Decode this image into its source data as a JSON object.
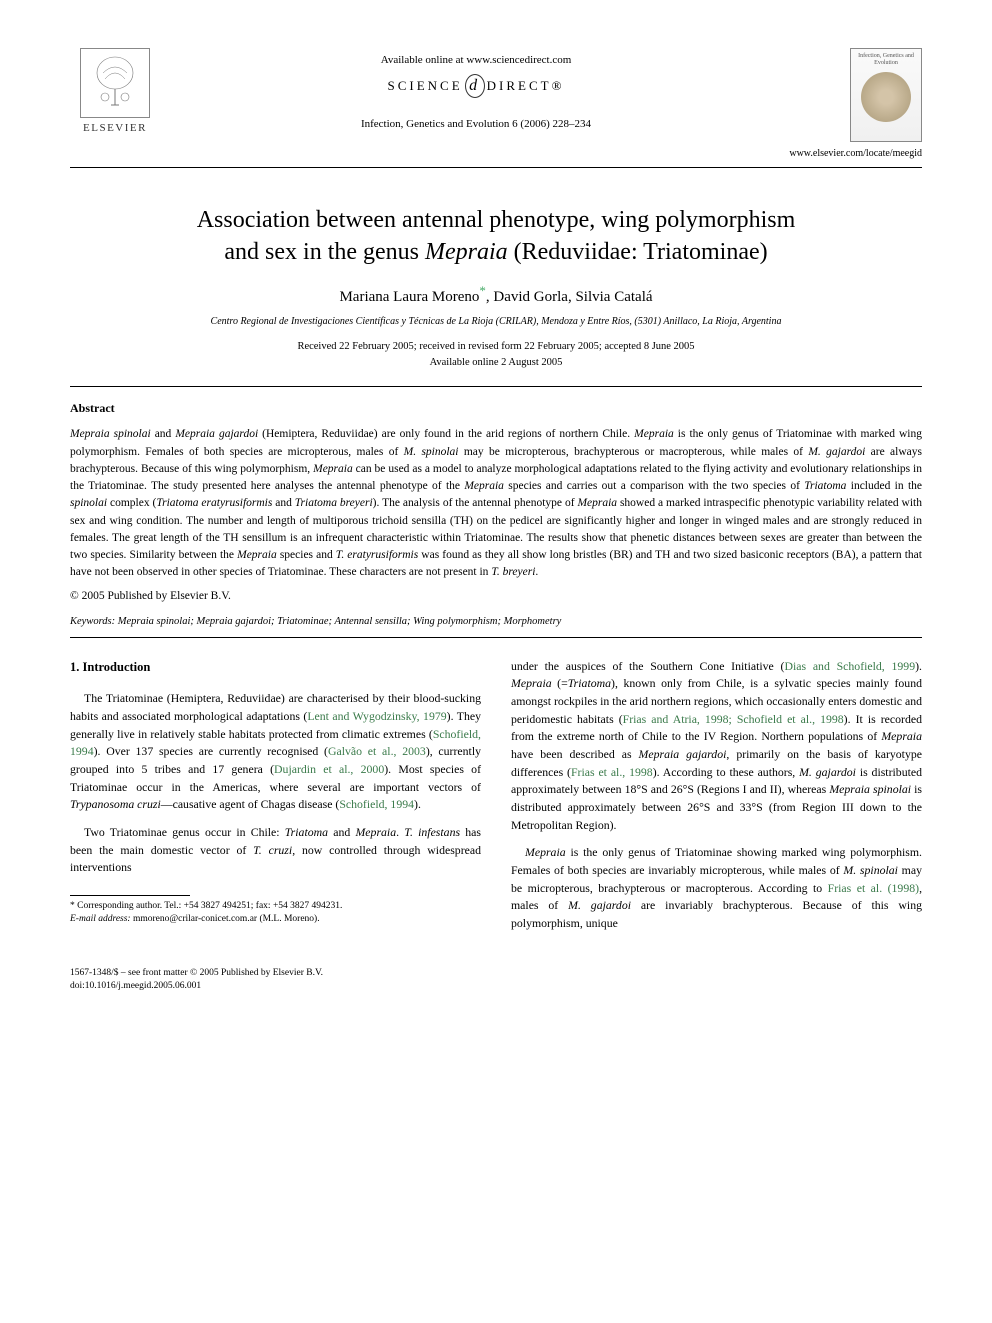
{
  "header": {
    "publisher_label": "ELSEVIER",
    "available_text": "Available online at www.sciencedirect.com",
    "sciencedirect_pre": "SCIENCE",
    "sciencedirect_post": "DIRECT®",
    "journal_ref": "Infection, Genetics and Evolution 6 (2006) 228–234",
    "journal_cover_title": "Infection, Genetics and Evolution",
    "locate_url": "www.elsevier.com/locate/meegid"
  },
  "title_parts": {
    "line1": "Association between antennal phenotype, wing polymorphism",
    "line2_pre": "and sex in the genus ",
    "line2_genus": "Mepraia",
    "line2_post": " (Reduviidae: Triatominae)"
  },
  "authors": {
    "a1": "Mariana Laura Moreno",
    "mark": "*",
    "a2": ", David Gorla, Silvia Catalá"
  },
  "affiliation": "Centro Regional de Investigaciones Científicas y Técnicas de La Rioja (CRILAR), Mendoza y Entre Ríos, (5301) Anillaco, La Rioja, Argentina",
  "dates": {
    "line1": "Received 22 February 2005; received in revised form 22 February 2005; accepted 8 June 2005",
    "line2": "Available online 2 August 2005"
  },
  "abstract": {
    "heading": "Abstract",
    "body_html": "<span class='sp'>Mepraia spinolai</span> and <span class='sp'>Mepraia gajardoi</span> (Hemiptera, Reduviidae) are only found in the arid regions of northern Chile. <span class='sp'>Mepraia</span> is the only genus of Triatominae with marked wing polymorphism. Females of both species are micropterous, males of <span class='sp'>M. spinolai</span> may be micropterous, brachypterous or macropterous, while males of <span class='sp'>M. gajardoi</span> are always brachypterous. Because of this wing polymorphism, <span class='sp'>Mepraia</span> can be used as a model to analyze morphological adaptations related to the flying activity and evolutionary relationships in the Triatominae. The study presented here analyses the antennal phenotype of the <span class='sp'>Mepraia</span> species and carries out a comparison with the two species of <span class='sp'>Triatoma</span> included in the <span class='sp'>spinolai</span> complex (<span class='sp'>Triatoma eratyrusiformis</span> and <span class='sp'>Triatoma breyeri</span>). The analysis of the antennal phenotype of <span class='sp'>Mepraia</span> showed a marked intraspecific phenotypic variability related with sex and wing condition. The number and length of multiporous trichoid sensilla (TH) on the pedicel are significantly higher and longer in winged males and are strongly reduced in females. The great length of the TH sensillum is an infrequent characteristic within Triatominae. The results show that phenetic distances between sexes are greater than between the two species. Similarity between the <span class='sp'>Mepraia</span> species and <span class='sp'>T. eratyrusiformis</span> was found as they all show long bristles (BR) and TH and two sized basiconic receptors (BA), a pattern that have not been observed in other species of Triatominae. These characters are not present in <span class='sp'>T. breyeri</span>.",
    "copyright": "© 2005 Published by Elsevier B.V."
  },
  "keywords": {
    "label": "Keywords:",
    "text": " Mepraia spinolai; Mepraia gajardoi; Triatominae; Antennal sensilla; Wing polymorphism; Morphometry"
  },
  "intro": {
    "heading": "1. Introduction",
    "col1_p1": "The Triatominae (Hemiptera, Reduviidae) are characterised by their blood-sucking habits and associated morphological adaptations (<span class='ref'>Lent and Wygodzinsky, 1979</span>). They generally live in relatively stable habitats protected from climatic extremes (<span class='ref'>Schofield, 1994</span>). Over 137 species are currently recognised (<span class='ref'>Galvão et al., 2003</span>), currently grouped into 5 tribes and 17 genera (<span class='ref'>Dujardin et al., 2000</span>). Most species of Triatominae occur in the Americas, where several are important vectors of <span class='sp'>Trypanosoma cruzi</span>—causative agent of Chagas disease (<span class='ref'>Schofield, 1994</span>).",
    "col1_p2": "Two Triatominae genus occur in Chile: <span class='sp'>Triatoma</span> and <span class='sp'>Mepraia</span>. <span class='sp'>T. infestans</span> has been the main domestic vector of <span class='sp'>T. cruzi</span>, now controlled through widespread interventions",
    "col2_p1": "under the auspices of the Southern Cone Initiative (<span class='ref'>Dias and Schofield, 1999</span>). <span class='sp'>Mepraia</span> (=<span class='sp'>Triatoma</span>), known only from Chile, is a sylvatic species mainly found amongst rockpiles in the arid northern regions, which occasionally enters domestic and peridomestic habitats (<span class='ref'>Frias and Atria, 1998; Schofield et al., 1998</span>). It is recorded from the extreme north of Chile to the IV Region. Northern populations of <span class='sp'>Mepraia</span> have been described as <span class='sp'>Mepraia gajardoi</span>, primarily on the basis of karyotype differences (<span class='ref'>Frias et al., 1998</span>). According to these authors, <span class='sp'>M. gajardoi</span> is distributed approximately between 18°S and 26°S (Regions I and II), whereas <span class='sp'>Mepraia spinolai</span> is distributed approximately between 26°S and 33°S (from Region III down to the Metropolitan Region).",
    "col2_p2": "<span class='sp'>Mepraia</span> is the only genus of Triatominae showing marked wing polymorphism. Females of both species are invariably micropterous, while males of <span class='sp'>M. spinolai</span> may be micropterous, brachypterous or macropterous. According to <span class='ref'>Frias et al. (1998)</span>, males of <span class='sp'>M. gajardoi</span> are invariably brachypterous. Because of this wing polymorphism, unique"
  },
  "footnote": {
    "corr": "* Corresponding author. Tel.: +54 3827 494251; fax: +54 3827 494231.",
    "email_label": "E-mail address:",
    "email": " mmoreno@crilar-conicet.com.ar (M.L. Moreno)."
  },
  "bottom": {
    "issn": "1567-1348/$ – see front matter © 2005 Published by Elsevier B.V.",
    "doi": "doi:10.1016/j.meegid.2005.06.001"
  },
  "colors": {
    "ref_color": "#3a7a4a",
    "text_color": "#000000",
    "bg": "#ffffff"
  }
}
